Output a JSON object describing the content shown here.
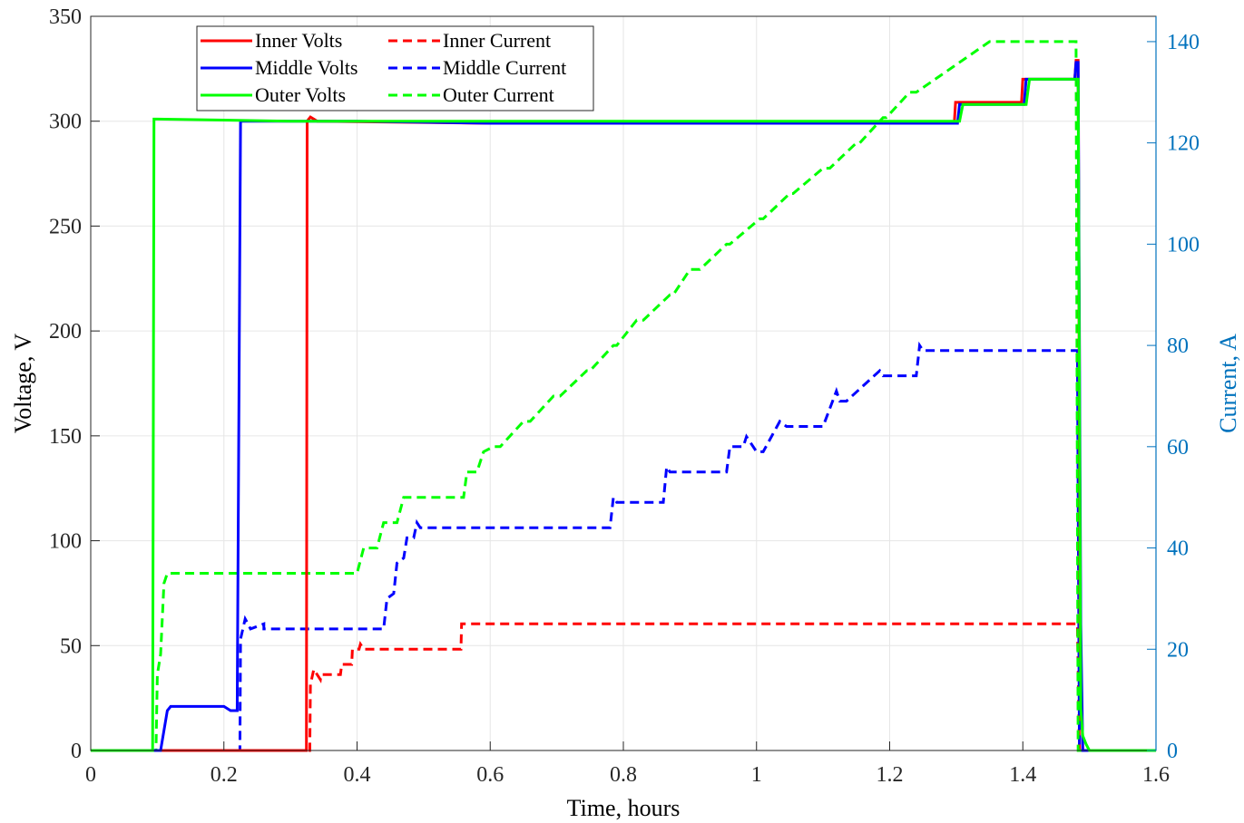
{
  "chart_data": {
    "type": "line",
    "title": "",
    "xlabel": "Time, hours",
    "ylabel_left": "Voltage, V",
    "ylabel_right": "Current, A",
    "xlim": [
      0,
      1.6
    ],
    "ylim_left": [
      0,
      350
    ],
    "ylim_right": [
      0,
      145
    ],
    "x_ticks": [
      0,
      0.2,
      0.4,
      0.6,
      0.8,
      1,
      1.2,
      1.4,
      1.6
    ],
    "x_tick_labels": [
      "0",
      "0.2",
      "0.4",
      "0.6",
      "0.8",
      "1",
      "1.2",
      "1.4",
      "1.6"
    ],
    "y_left_ticks": [
      0,
      50,
      100,
      150,
      200,
      250,
      300,
      350
    ],
    "y_left_tick_labels": [
      "0",
      "50",
      "100",
      "150",
      "200",
      "250",
      "300",
      "350"
    ],
    "y_right_ticks": [
      0,
      20,
      40,
      60,
      80,
      100,
      120,
      140
    ],
    "y_right_tick_labels": [
      "0",
      "20",
      "40",
      "60",
      "80",
      "100",
      "120",
      "140"
    ],
    "grid": true,
    "legend_position": "top-left",
    "colors": {
      "inner": "#ff0000",
      "middle": "#0000ff",
      "outer": "#00ff00",
      "right_axis": "#0072bd"
    },
    "series": [
      {
        "name": "Inner Volts",
        "axis": "left",
        "style": "solid",
        "color": "#ff0000",
        "x": [
          0,
          0.324,
          0.325,
          0.33,
          0.34,
          0.6,
          1.0,
          1.297,
          1.299,
          1.398,
          1.4,
          1.478,
          1.48,
          1.483,
          1.486,
          1.49,
          1.6
        ],
        "y": [
          0,
          0,
          300,
          302,
          300,
          299,
          299,
          299,
          309,
          309,
          320,
          320,
          329,
          329,
          50,
          0,
          0
        ]
      },
      {
        "name": "Inner Current",
        "axis": "right",
        "style": "dashed",
        "color": "#ff0000",
        "x": [
          0,
          0.329,
          0.33,
          0.335,
          0.345,
          0.346,
          0.375,
          0.377,
          0.392,
          0.393,
          0.403,
          0.405,
          0.41,
          0.556,
          0.557,
          1.482,
          1.485,
          1.6
        ],
        "y": [
          0,
          0,
          13,
          16,
          14,
          15,
          15,
          17,
          17,
          20,
          20,
          21,
          20,
          20,
          25,
          25,
          0,
          0
        ]
      },
      {
        "name": "Middle Volts",
        "axis": "left",
        "style": "solid",
        "color": "#0000ff",
        "x": [
          0,
          0.105,
          0.115,
          0.12,
          0.2,
          0.21,
          0.22,
          0.225,
          0.23,
          0.4,
          0.6,
          1.0,
          1.302,
          1.305,
          1.402,
          1.405,
          1.478,
          1.48,
          1.483,
          1.487,
          1.49,
          1.6
        ],
        "y": [
          0,
          0,
          19,
          21,
          21,
          19,
          19,
          300,
          300,
          300,
          299,
          299,
          299,
          308,
          308,
          320,
          320,
          328,
          328,
          60,
          0,
          0
        ]
      },
      {
        "name": "Middle Current",
        "axis": "right",
        "style": "dashed",
        "color": "#0000ff",
        "x": [
          0,
          0.224,
          0.225,
          0.232,
          0.236,
          0.24,
          0.26,
          0.26,
          0.3,
          0.35,
          0.4,
          0.44,
          0.445,
          0.455,
          0.46,
          0.47,
          0.475,
          0.485,
          0.49,
          0.495,
          0.78,
          0.785,
          0.79,
          0.86,
          0.865,
          0.87,
          0.955,
          0.96,
          0.98,
          0.985,
          1.0,
          1.01,
          1.035,
          1.045,
          1.1,
          1.12,
          1.125,
          1.135,
          1.185,
          1.19,
          1.24,
          1.245,
          1.25,
          1.3,
          1.35,
          1.4,
          1.482,
          1.485,
          1.6
        ],
        "y": [
          0,
          0,
          22,
          26,
          25,
          24,
          25,
          24,
          24,
          24,
          24,
          24,
          30,
          31,
          37,
          38,
          42,
          42,
          45,
          44,
          44,
          50,
          49,
          49,
          56,
          55,
          55,
          60,
          60,
          62,
          59,
          59,
          65,
          64,
          64,
          71,
          69,
          69,
          75,
          74,
          74,
          80,
          79,
          79,
          79,
          79,
          79,
          0,
          0
        ]
      },
      {
        "name": "Outer Volts",
        "axis": "left",
        "style": "solid",
        "color": "#00ff00",
        "x": [
          0,
          0.093,
          0.095,
          0.1,
          0.3,
          0.6,
          1.0,
          1.305,
          1.31,
          1.405,
          1.41,
          1.478,
          1.483,
          1.487,
          1.49,
          1.495,
          1.5,
          1.6
        ],
        "y": [
          0,
          0,
          301,
          301,
          300,
          300,
          300,
          300,
          308,
          308,
          320,
          320,
          320,
          20,
          7,
          3,
          0,
          0
        ]
      },
      {
        "name": "Outer Current",
        "axis": "right",
        "style": "dashed",
        "color": "#00ff00",
        "x": [
          0,
          0.098,
          0.1,
          0.105,
          0.11,
          0.115,
          0.12,
          0.4,
          0.41,
          0.43,
          0.44,
          0.46,
          0.47,
          0.48,
          0.49,
          0.5,
          0.56,
          0.565,
          0.58,
          0.59,
          0.605,
          0.615,
          0.65,
          0.66,
          0.695,
          0.705,
          0.745,
          0.75,
          0.785,
          0.79,
          0.82,
          0.83,
          0.87,
          0.875,
          0.9,
          0.915,
          0.955,
          0.96,
          1.005,
          1.01,
          1.05,
          1.055,
          1.1,
          1.11,
          1.15,
          1.155,
          1.19,
          1.195,
          1.23,
          1.24,
          1.35,
          1.48,
          1.483,
          1.6
        ],
        "y": [
          0,
          0,
          15,
          19,
          33,
          35,
          35,
          35,
          40,
          40,
          45,
          45,
          50,
          50,
          50,
          50,
          50,
          55,
          55,
          59,
          60,
          60,
          65,
          65,
          70,
          70,
          75,
          75,
          80,
          80,
          85,
          85,
          90,
          90,
          95,
          95,
          100,
          100,
          105,
          105,
          110,
          110,
          115,
          115,
          120,
          120,
          125,
          125,
          130,
          130,
          140,
          140,
          0,
          0
        ]
      }
    ],
    "legend_columns": [
      [
        "Inner Volts",
        "Middle Volts",
        "Outer Volts"
      ],
      [
        "Inner Current",
        "Middle Current",
        "Outer Current"
      ]
    ]
  }
}
